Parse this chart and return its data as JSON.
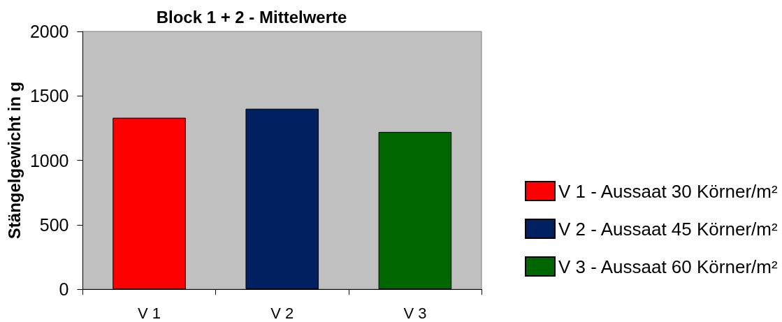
{
  "chart_data": {
    "type": "bar",
    "title": "Block 1 + 2 - Mittelwerte",
    "ylabel": "Stängelgewicht in g",
    "categories": [
      "V 1",
      "V 2",
      "V 3"
    ],
    "series": [
      {
        "name": "V 1 - Aussaat 30 Körner/m²",
        "color": "#ff0000",
        "values": [
          1330,
          null,
          null
        ]
      },
      {
        "name": "V 2 - Aussaat 45 Körner/m²",
        "color": "#002060",
        "values": [
          null,
          1400,
          null
        ]
      },
      {
        "name": "V 3 - Aussaat 60 Körner/m²",
        "color": "#006600",
        "values": [
          null,
          null,
          1220
        ]
      }
    ],
    "ylim": [
      0,
      2000
    ],
    "yticks": [
      0,
      500,
      1000,
      1500,
      2000
    ],
    "grid": false,
    "legend": "right"
  }
}
